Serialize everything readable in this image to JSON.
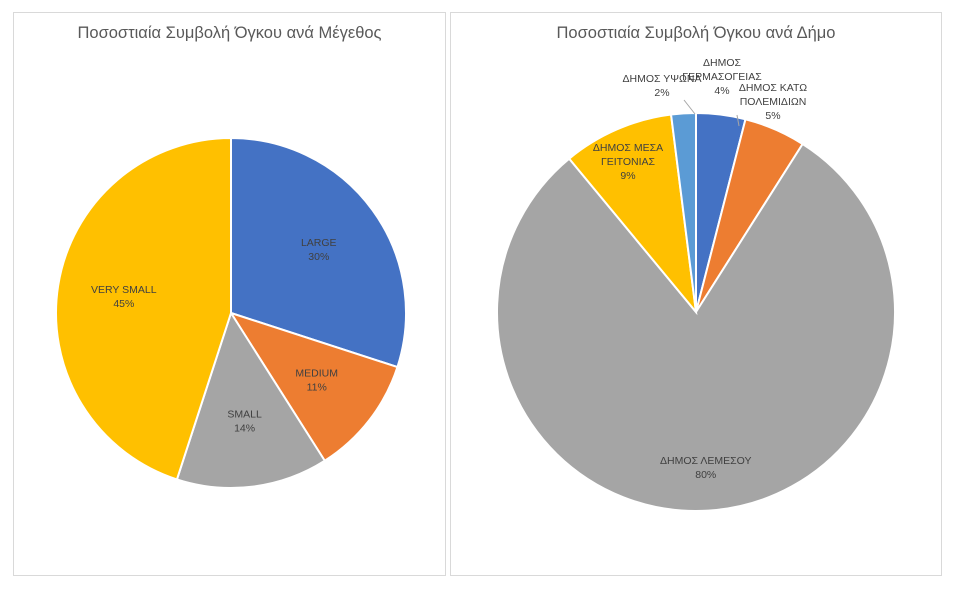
{
  "chart_data": [
    {
      "type": "pie",
      "title": "Ποσοστιαία Συμβολή Όγκου ανά Μέγεθος",
      "slices": [
        {
          "label": "LARGE",
          "value": 30,
          "display": "30%",
          "color": "#4472C4"
        },
        {
          "label": "MEDIUM",
          "value": 11,
          "display": "11%",
          "color": "#ED7D31"
        },
        {
          "label": "SMALL",
          "value": 14,
          "display": "14%",
          "color": "#A5A5A5"
        },
        {
          "label": "VERY SMALL",
          "value": 45,
          "display": "45%",
          "color": "#FFC000"
        }
      ]
    },
    {
      "type": "pie",
      "title": "Ποσοστιαία Συμβολή Όγκου ανά Δήμο",
      "slices": [
        {
          "label": "ΔΗΜΟΣ ΓΕΡΜΑΣΟΓΕΙΑΣ",
          "value": 4,
          "display": "4%",
          "color": "#4472C4"
        },
        {
          "label": "ΔΗΜΟΣ ΚΑΤΩ ΠΟΛΕΜΙΔΙΩΝ",
          "value": 5,
          "display": "5%",
          "color": "#ED7D31"
        },
        {
          "label": "ΔΗΜΟΣ ΛΕΜΕΣΟΥ",
          "value": 80,
          "display": "80%",
          "color": "#A5A5A5"
        },
        {
          "label": "ΔΗΜΟΣ ΜΕΣΑ ΓΕΙΤΟΝΙΑΣ",
          "value": 9,
          "display": "9%",
          "color": "#FFC000"
        },
        {
          "label": "ΔΗΜΟΣ ΥΨΩΝΑ",
          "value": 2,
          "display": "2%",
          "color": "#5B9BD5"
        }
      ]
    }
  ]
}
